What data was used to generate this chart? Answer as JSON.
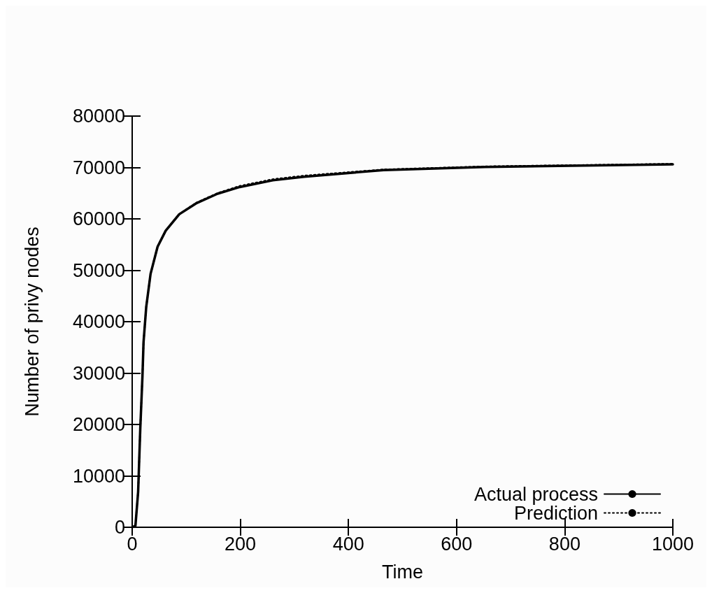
{
  "chart_data": {
    "type": "line",
    "xlabel": "Time",
    "ylabel": "Number of privy nodes",
    "xlim": [
      0,
      1000
    ],
    "xticks": [
      0,
      200,
      400,
      600,
      800,
      1000
    ],
    "ylim": [
      0,
      80000
    ],
    "yticks": [
      0,
      10000,
      20000,
      30000,
      40000,
      50000,
      60000,
      70000,
      80000
    ],
    "grid": false,
    "legend": "bottom right",
    "series": [
      {
        "name": "Actual process",
        "color": "#000000",
        "line_style": "solid",
        "x": [
          0,
          6,
          11,
          15,
          19,
          21,
          26,
          34,
          47,
          62,
          87,
          118,
          158,
          199,
          260,
          318,
          465,
          653,
          1000
        ],
        "values": [
          0,
          300,
          6900,
          19300,
          29400,
          36000,
          42900,
          49300,
          54600,
          57700,
          60900,
          63000,
          64900,
          66200,
          67500,
          68200,
          69500,
          70100,
          70600
        ]
      },
      {
        "name": "Prediction",
        "color": "#000000",
        "line_style": "dotted",
        "x": [
          0,
          6,
          11,
          15,
          19,
          21,
          26,
          34,
          47,
          62,
          87,
          118,
          158,
          199,
          260,
          318,
          465,
          653,
          1000
        ],
        "values": [
          0,
          300,
          6900,
          19300,
          29400,
          36000,
          42900,
          49300,
          54600,
          57700,
          60900,
          63100,
          65000,
          66400,
          67700,
          68400,
          69600,
          70200,
          70700
        ]
      }
    ]
  }
}
